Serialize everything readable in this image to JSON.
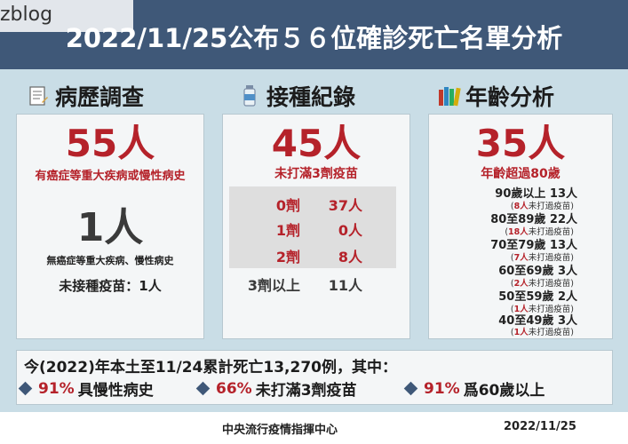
{
  "watermark": "zblog",
  "title": "2022/11/25公布５６位確診死亡名單分析",
  "sections": {
    "history": {
      "heading": "病歷調查",
      "icon": "notepad-icon",
      "big_value": "55人",
      "big_caption": "有癌症等重大疾病或慢性病史",
      "second_value": "1人",
      "second_caption": "無癌症等重大疾病、慢性病史",
      "note": "未接種疫苗：1人"
    },
    "vaccination": {
      "heading": "接種紀錄",
      "icon": "vaccine-vial-icon",
      "big_value": "45人",
      "big_caption": "未打滿3劑疫苗",
      "doses": [
        {
          "dose": "0劑",
          "count": "37人"
        },
        {
          "dose": "1劑",
          "count": "0人"
        },
        {
          "dose": "2劑",
          "count": "8人"
        }
      ],
      "extra": {
        "dose": "3劑以上",
        "count": "11人"
      }
    },
    "age": {
      "heading": "年齡分析",
      "icon": "books-icon",
      "big_value": "35人",
      "big_caption": "年齡超過80歲",
      "groups": [
        {
          "label": "90歲以上  13人",
          "unvax_num": "8人",
          "unvax_text": "未打過疫苗"
        },
        {
          "label": "80至89歲  22人",
          "unvax_num": "18人",
          "unvax_text": "未打過疫苗"
        },
        {
          "label": "70至79歲  13人",
          "unvax_num": "7人",
          "unvax_text": "未打過疫苗"
        },
        {
          "label": "60至69歲    3人",
          "unvax_num": "2人",
          "unvax_text": "未打過疫苗"
        },
        {
          "label": "50至59歲    2人",
          "unvax_num": "1人",
          "unvax_text": "未打過疫苗"
        },
        {
          "label": "40至49歲    3人",
          "unvax_num": "1人",
          "unvax_text": "未打過疫苗"
        }
      ]
    }
  },
  "summary": {
    "line1": "今(2022)年本土至11/24累計死亡13,270例，其中：",
    "items": [
      {
        "pct": "91%",
        "text": "具慢性病史"
      },
      {
        "pct": "66%",
        "text": "未打滿3劑疫苗"
      },
      {
        "pct": "91%",
        "text": "爲60歲以上"
      }
    ]
  },
  "footer": {
    "org": "中央流行疫情指揮中心",
    "date": "2022/11/25"
  },
  "colors": {
    "header_bg": "#3f5878",
    "body_bg": "#c9dde6",
    "accent_red": "#b5222a",
    "panel_bg": "#f4f6f7"
  }
}
